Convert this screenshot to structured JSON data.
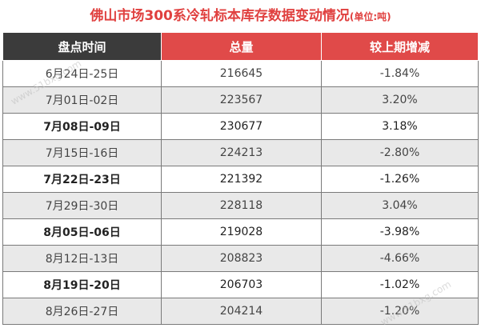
{
  "title": {
    "main": "佛山市场300系冷轧标本库存数据变动情况",
    "unit": "(单位:吨)"
  },
  "table": {
    "headers": [
      "盘点时间",
      "总量",
      "较上期增减"
    ],
    "rows": [
      {
        "period": "6月24日-25日",
        "total": "216645",
        "change": "-1.84%"
      },
      {
        "period": "7月01日-02日",
        "total": "223567",
        "change": "3.20%"
      },
      {
        "period": "7月08日-09日",
        "total": "230677",
        "change": "3.18%"
      },
      {
        "period": "7月15日-16日",
        "total": "224213",
        "change": "-2.80%"
      },
      {
        "period": "7月22日-23日",
        "total": "221392",
        "change": "-1.26%"
      },
      {
        "period": "7月29日-30日",
        "total": "228118",
        "change": "3.04%"
      },
      {
        "period": "8月05日-06日",
        "total": "219028",
        "change": "-3.98%"
      },
      {
        "period": "8月12日-13日",
        "total": "208823",
        "change": "-4.66%"
      },
      {
        "period": "8月19日-20日",
        "total": "206703",
        "change": "-1.02%"
      },
      {
        "period": "8月26日-27日",
        "total": "204214",
        "change": "-1.20%"
      }
    ]
  },
  "watermark": "www.51bxg.com",
  "colors": {
    "title": "#e0403f",
    "header_dark": "#3b3b3b",
    "header_red": "#e04a49",
    "row_alt": "#e9e9e9"
  }
}
